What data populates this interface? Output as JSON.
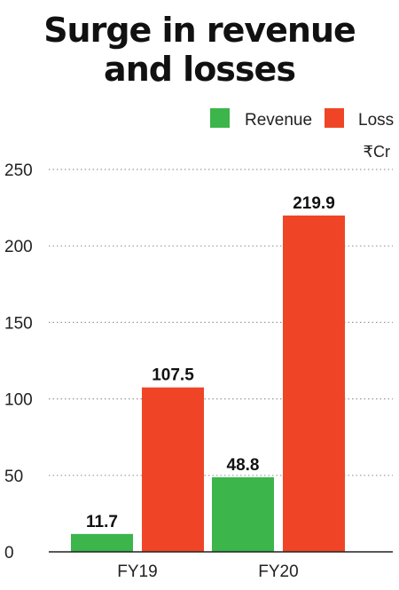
{
  "chart_data": {
    "type": "bar",
    "title": "Surge in revenue and losses",
    "title_lines": [
      "Surge in",
      "revenue",
      "and losses"
    ],
    "unit": "₹Cr",
    "categories": [
      "FY19",
      "FY20"
    ],
    "series": [
      {
        "name": "Revenue",
        "color": "#3cb54a",
        "values": [
          11.7,
          48.8
        ],
        "labels": [
          "11.7",
          "48.8"
        ]
      },
      {
        "name": "Loss",
        "color": "#ef4526",
        "values": [
          107.5,
          219.9
        ],
        "labels": [
          "107.5",
          "219.9"
        ]
      }
    ],
    "yticks": [
      0,
      50,
      100,
      150,
      200,
      250
    ],
    "ylim": [
      0,
      250
    ],
    "grid": true,
    "legend": "top-right"
  }
}
